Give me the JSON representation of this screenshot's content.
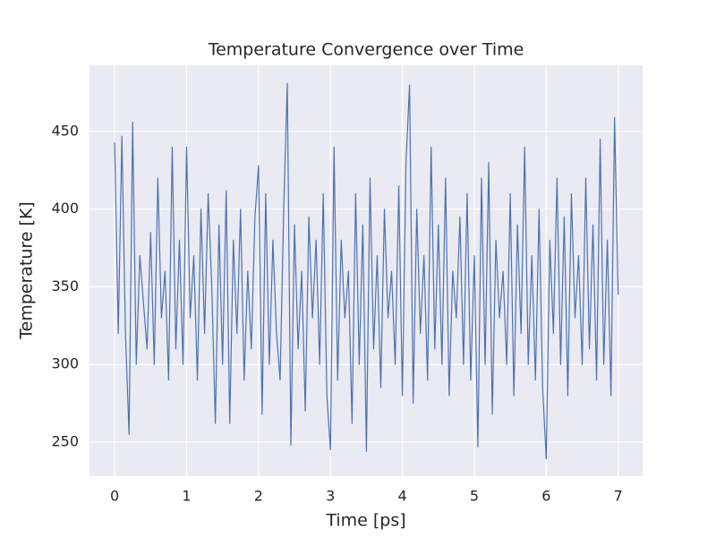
{
  "chart_data": {
    "type": "line",
    "title": "Temperature Convergence over Time",
    "x_label": "Time [ps]",
    "y_label": "Temperature [K]",
    "x": [
      0,
      0.05,
      0.1,
      0.15,
      0.2,
      0.25,
      0.3,
      0.35,
      0.4,
      0.45,
      0.5,
      0.55,
      0.6,
      0.65,
      0.7,
      0.75,
      0.8,
      0.85,
      0.9,
      0.95,
      1,
      1.05,
      1.1,
      1.15,
      1.2,
      1.25,
      1.3,
      1.35,
      1.4,
      1.45,
      1.5,
      1.55,
      1.6,
      1.65,
      1.7,
      1.75,
      1.8,
      1.85,
      1.9,
      1.95,
      2,
      2.05,
      2.1,
      2.15,
      2.2,
      2.25,
      2.3,
      2.35,
      2.4,
      2.45,
      2.5,
      2.55,
      2.6,
      2.65,
      2.7,
      2.75,
      2.8,
      2.85,
      2.9,
      2.95,
      3,
      3.05,
      3.1,
      3.15,
      3.2,
      3.25,
      3.3,
      3.35,
      3.4,
      3.45,
      3.5,
      3.55,
      3.6,
      3.65,
      3.7,
      3.75,
      3.8,
      3.85,
      3.9,
      3.95,
      4,
      4.05,
      4.1,
      4.15,
      4.2,
      4.25,
      4.3,
      4.35,
      4.4,
      4.45,
      4.5,
      4.55,
      4.6,
      4.65,
      4.7,
      4.75,
      4.8,
      4.85,
      4.9,
      4.95,
      5,
      5.05,
      5.1,
      5.15,
      5.2,
      5.25,
      5.3,
      5.35,
      5.4,
      5.45,
      5.5,
      5.55,
      5.6,
      5.65,
      5.7,
      5.75,
      5.8,
      5.85,
      5.9,
      5.95,
      6,
      6.05,
      6.1,
      6.15,
      6.2,
      6.25,
      6.3,
      6.35,
      6.4,
      6.45,
      6.5,
      6.55,
      6.6,
      6.65,
      6.7,
      6.75,
      6.8,
      6.85,
      6.9,
      6.95,
      7
    ],
    "series": [
      {
        "color": "#4c72b0",
        "values": [
          443,
          320,
          447,
          320,
          255,
          456,
          300,
          370,
          340,
          310,
          385,
          300,
          420,
          330,
          360,
          290,
          440,
          310,
          380,
          300,
          440,
          330,
          370,
          290,
          400,
          320,
          410,
          350,
          262,
          390,
          300,
          412,
          262,
          380,
          320,
          400,
          290,
          360,
          310,
          395,
          428,
          268,
          410,
          300,
          380,
          320,
          290,
          400,
          481,
          248,
          390,
          310,
          360,
          270,
          395,
          330,
          380,
          300,
          410,
          280,
          245,
          440,
          290,
          380,
          330,
          360,
          262,
          410,
          300,
          390,
          244,
          420,
          310,
          370,
          285,
          400,
          330,
          360,
          300,
          415,
          280,
          430,
          480,
          275,
          400,
          320,
          370,
          290,
          440,
          310,
          390,
          300,
          420,
          280,
          360,
          330,
          395,
          300,
          410,
          290,
          370,
          247,
          420,
          300,
          430,
          268,
          380,
          330,
          360,
          300,
          410,
          280,
          390,
          320,
          440,
          300,
          370,
          290,
          400,
          285,
          239,
          380,
          320,
          420,
          300,
          395,
          280,
          410,
          330,
          370,
          300,
          420,
          310,
          390,
          290,
          445,
          300,
          380,
          280,
          459,
          345
        ]
      }
    ],
    "xlim": [
      -0.35,
      7.34
    ],
    "ylim": [
      228.1,
      492.6
    ],
    "xticks": [
      0,
      1,
      2,
      3,
      4,
      5,
      6,
      7
    ],
    "yticks": [
      250,
      300,
      350,
      400,
      450
    ],
    "grid": true
  }
}
